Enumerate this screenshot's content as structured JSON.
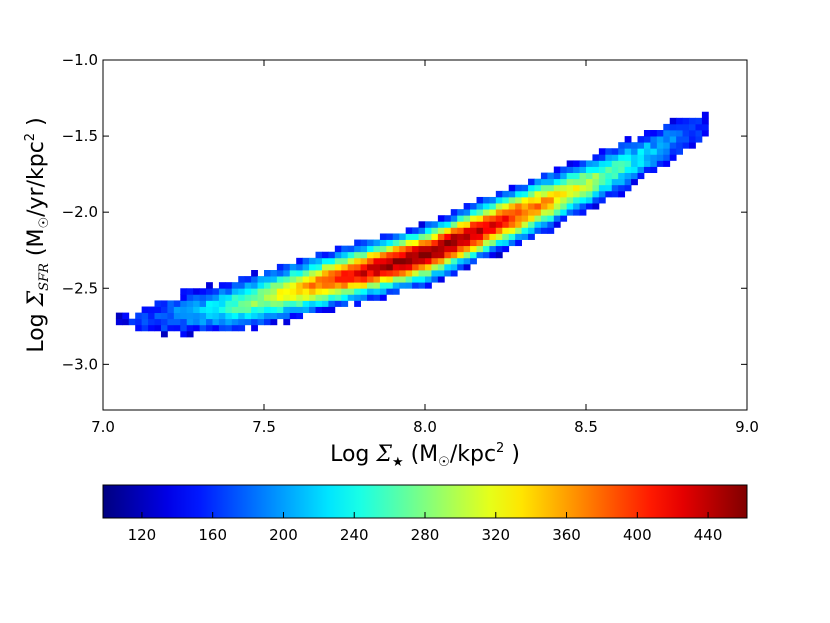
{
  "chart_data": {
    "type": "heatmap",
    "title": "",
    "xlabel": {
      "prefix": "Log ",
      "symbol": "Σ",
      "sub": "★",
      "unit_open": " (M",
      "unit_sub": "☉",
      "unit_mid": "/kpc",
      "unit_sup": "2",
      "unit_close": " )"
    },
    "ylabel": {
      "prefix": "Log ",
      "symbol": "Σ",
      "sub": "SFR",
      "unit_open": " (M",
      "unit_sub": "☉",
      "unit_mid": "/yr/kpc",
      "unit_sup": "2",
      "unit_close": " )"
    },
    "xlim": [
      7.0,
      9.0
    ],
    "ylim": [
      -3.3,
      -1.0
    ],
    "x_ticks": [
      {
        "value": 7.0,
        "label": "7.0"
      },
      {
        "value": 7.5,
        "label": "7.5"
      },
      {
        "value": 8.0,
        "label": "8.0"
      },
      {
        "value": 8.5,
        "label": "8.5"
      },
      {
        "value": 9.0,
        "label": "9.0"
      }
    ],
    "y_ticks": [
      {
        "value": -1.0,
        "label": "−1.0"
      },
      {
        "value": -1.5,
        "label": "−1.5"
      },
      {
        "value": -2.0,
        "label": "−2.0"
      },
      {
        "value": -2.5,
        "label": "−2.5"
      },
      {
        "value": -3.0,
        "label": "−3.0"
      }
    ],
    "grid": false,
    "colormap": "jet",
    "colorbar": {
      "orientation": "horizontal",
      "position": "bottom",
      "range": [
        98,
        462
      ],
      "ticks": [
        {
          "value": 120,
          "label": "120"
        },
        {
          "value": 160,
          "label": "160"
        },
        {
          "value": 200,
          "label": "200"
        },
        {
          "value": 240,
          "label": "240"
        },
        {
          "value": 280,
          "label": "280"
        },
        {
          "value": 320,
          "label": "320"
        },
        {
          "value": 360,
          "label": "360"
        },
        {
          "value": 400,
          "label": "400"
        },
        {
          "value": 440,
          "label": "440"
        }
      ]
    },
    "distribution": {
      "bin_width_x": 0.02,
      "bin_width_y": 0.04,
      "ridge_points": [
        [
          7.05,
          -2.72
        ],
        [
          7.4,
          -2.62
        ],
        [
          8.0,
          -2.28
        ],
        [
          8.5,
          -1.82
        ],
        [
          8.85,
          -1.45
        ]
      ],
      "x_extent": [
        7.05,
        8.88
      ],
      "y_extent": [
        -2.97,
        -1.23
      ],
      "peak_location": [
        8.0,
        -2.25
      ],
      "peak_count": 460,
      "min_count": 98
    }
  }
}
